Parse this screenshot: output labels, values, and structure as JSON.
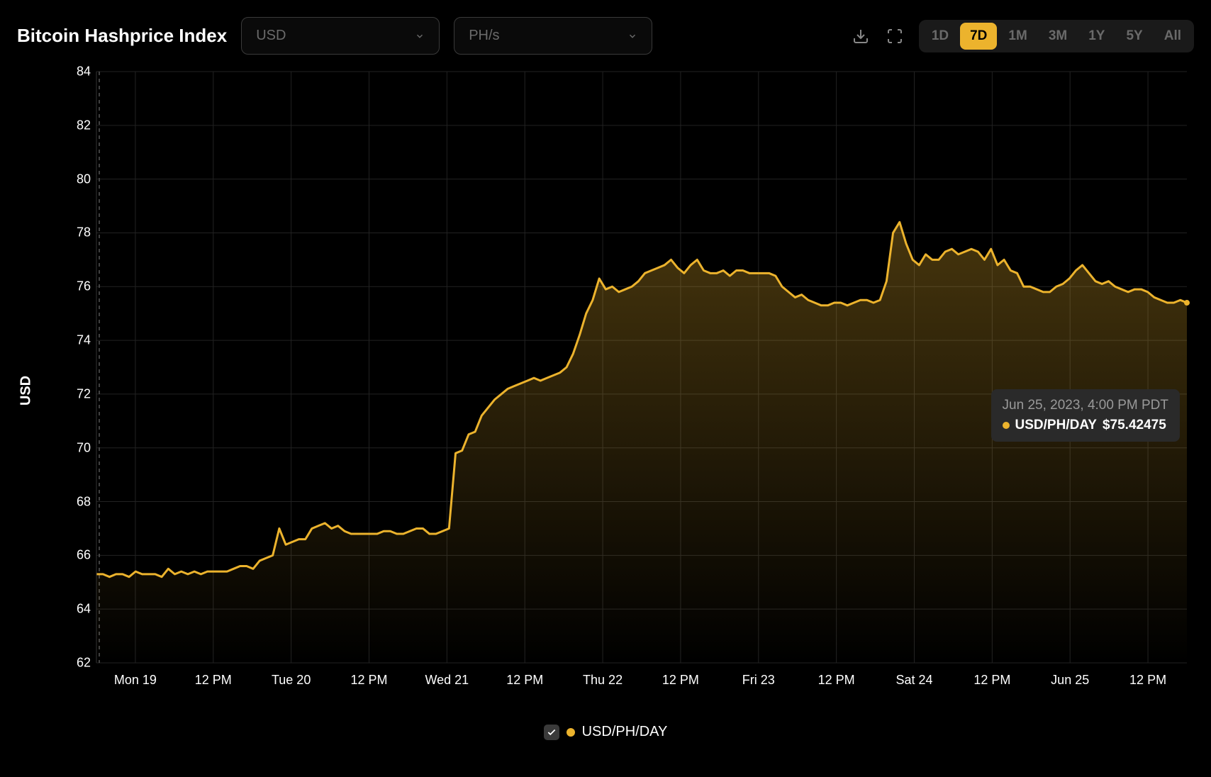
{
  "header": {
    "title": "Bitcoin Hashprice Index",
    "currency_dropdown": {
      "value": "USD"
    },
    "unit_dropdown": {
      "value": "PH/s"
    },
    "ranges": [
      "1D",
      "7D",
      "1M",
      "3M",
      "1Y",
      "5Y",
      "All"
    ],
    "active_range": "7D"
  },
  "chart": {
    "type": "area",
    "line_color": "#ecb32d",
    "line_width": 3,
    "fill_gradient_top": "rgba(236,179,45,0.30)",
    "fill_gradient_bottom": "rgba(236,179,45,0.00)",
    "background_color": "#000000",
    "grid_color": "#222222",
    "axis_text_color": "#ffffff",
    "y_label": "USD",
    "ylim": [
      62,
      84
    ],
    "ytick_step": 2,
    "yticks": [
      62,
      64,
      66,
      68,
      70,
      72,
      74,
      76,
      78,
      80,
      82,
      84
    ],
    "xticks": [
      "Mon 19",
      "12 PM",
      "Tue 20",
      "12 PM",
      "Wed 21",
      "12 PM",
      "Thu 22",
      "12 PM",
      "Fri 23",
      "12 PM",
      "Sat 24",
      "12 PM",
      "Jun 25",
      "12 PM"
    ],
    "end_marker": {
      "color": "#ecb32d",
      "radius": 4
    },
    "series": {
      "name": "USD/PH/DAY",
      "values": [
        65.3,
        65.3,
        65.2,
        65.3,
        65.3,
        65.2,
        65.4,
        65.3,
        65.3,
        65.3,
        65.2,
        65.5,
        65.3,
        65.4,
        65.3,
        65.4,
        65.3,
        65.4,
        65.4,
        65.4,
        65.4,
        65.5,
        65.6,
        65.6,
        65.5,
        65.8,
        65.9,
        66.0,
        67.0,
        66.4,
        66.5,
        66.6,
        66.6,
        67.0,
        67.1,
        67.2,
        67.0,
        67.1,
        66.9,
        66.8,
        66.8,
        66.8,
        66.8,
        66.8,
        66.9,
        66.9,
        66.8,
        66.8,
        66.9,
        67.0,
        67.0,
        66.8,
        66.8,
        66.9,
        67.0,
        69.8,
        69.9,
        70.5,
        70.6,
        71.2,
        71.5,
        71.8,
        72.0,
        72.2,
        72.3,
        72.4,
        72.5,
        72.6,
        72.5,
        72.6,
        72.7,
        72.8,
        73.0,
        73.5,
        74.2,
        75.0,
        75.5,
        76.3,
        75.9,
        76.0,
        75.8,
        75.9,
        76.0,
        76.2,
        76.5,
        76.6,
        76.7,
        76.8,
        77.0,
        76.7,
        76.5,
        76.8,
        77.0,
        76.6,
        76.5,
        76.5,
        76.6,
        76.4,
        76.6,
        76.6,
        76.5,
        76.5,
        76.5,
        76.5,
        76.4,
        76.0,
        75.8,
        75.6,
        75.7,
        75.5,
        75.4,
        75.3,
        75.3,
        75.4,
        75.4,
        75.3,
        75.4,
        75.5,
        75.5,
        75.4,
        75.5,
        76.2,
        78.0,
        78.4,
        77.6,
        77.0,
        76.8,
        77.2,
        77.0,
        77.0,
        77.3,
        77.4,
        77.2,
        77.3,
        77.4,
        77.3,
        77.0,
        77.4,
        76.8,
        77.0,
        76.6,
        76.5,
        76.0,
        76.0,
        75.9,
        75.8,
        75.8,
        76.0,
        76.1,
        76.3,
        76.6,
        76.8,
        76.5,
        76.2,
        76.1,
        76.2,
        76.0,
        75.9,
        75.8,
        75.9,
        75.9,
        75.8,
        75.6,
        75.5,
        75.4,
        75.4,
        75.5,
        75.4
      ]
    }
  },
  "tooltip": {
    "date": "Jun 25, 2023, 4:00 PM PDT",
    "series_label": "USD/PH/DAY",
    "value": "$75.42475",
    "dot_color": "#ecb32d"
  },
  "legend": {
    "checked": true,
    "label": "USD/PH/DAY",
    "dot_color": "#ecb32d"
  }
}
